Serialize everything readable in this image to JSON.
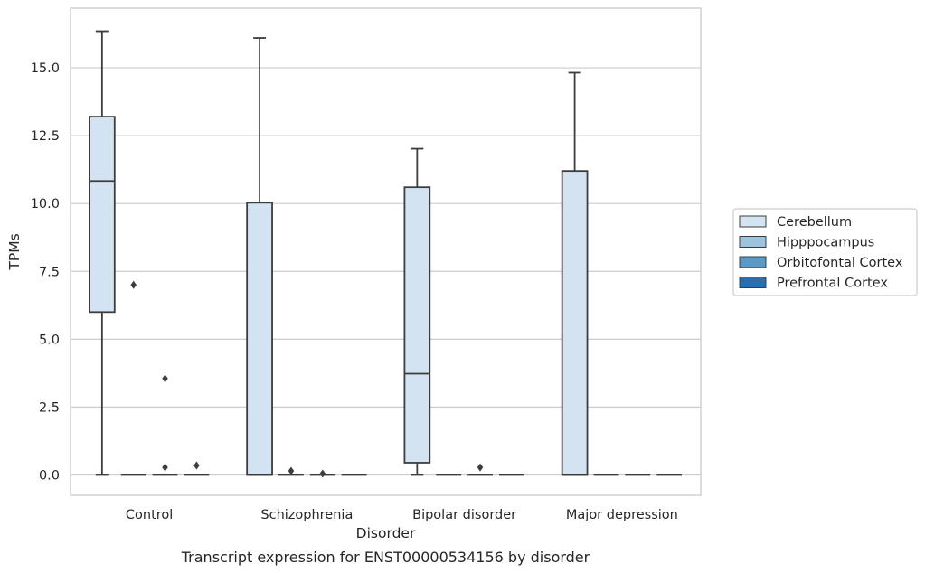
{
  "chart_data": {
    "type": "box",
    "title": "",
    "caption": "Transcript expression for ENST00000534156 by disorder",
    "xlabel": "Disorder",
    "ylabel": "TPMs",
    "ylim": [
      -0.75,
      17.2
    ],
    "yticks": [
      0.0,
      2.5,
      5.0,
      7.5,
      10.0,
      12.5,
      15.0
    ],
    "ytick_labels": [
      "0.0",
      "2.5",
      "5.0",
      "7.5",
      "10.0",
      "12.5",
      "15.0"
    ],
    "grid": "horizontal",
    "legend_position": "right",
    "categories": [
      "Control",
      "Schizophrenia",
      "Bipolar disorder",
      "Major depression"
    ],
    "series": [
      {
        "name": "Cerebellum",
        "color": "#d4e3f2",
        "boxes": [
          {
            "whisker_low": 0.0,
            "q1": 6.0,
            "median": 10.83,
            "q3": 13.2,
            "whisker_high": 16.35,
            "outliers": []
          },
          {
            "whisker_low": 0.0,
            "q1": 0.0,
            "median": 0.0,
            "q3": 10.03,
            "whisker_high": 16.1,
            "outliers": []
          },
          {
            "whisker_low": 0.0,
            "q1": 0.45,
            "median": 3.73,
            "q3": 10.6,
            "whisker_high": 12.02,
            "outliers": []
          },
          {
            "whisker_low": 0.0,
            "q1": 0.0,
            "median": 0.0,
            "q3": 11.2,
            "whisker_high": 14.82,
            "outliers": []
          }
        ]
      },
      {
        "name": "Hipppocampus",
        "color": "#9ec3dc",
        "boxes": [
          {
            "whisker_low": 0.0,
            "q1": 0.0,
            "median": 0.0,
            "q3": 0.0,
            "whisker_high": 0.0,
            "outliers": [
              7.0
            ]
          },
          {
            "whisker_low": 0.0,
            "q1": 0.0,
            "median": 0.0,
            "q3": 0.0,
            "whisker_high": 0.0,
            "outliers": [
              0.15
            ]
          },
          {
            "whisker_low": 0.0,
            "q1": 0.0,
            "median": 0.0,
            "q3": 0.0,
            "whisker_high": 0.0,
            "outliers": []
          },
          {
            "whisker_low": 0.0,
            "q1": 0.0,
            "median": 0.0,
            "q3": 0.0,
            "whisker_high": 0.0,
            "outliers": []
          }
        ]
      },
      {
        "name": "Orbitofontal Cortex",
        "color": "#5b9ac6",
        "boxes": [
          {
            "whisker_low": 0.0,
            "q1": 0.0,
            "median": 0.0,
            "q3": 0.0,
            "whisker_high": 0.0,
            "outliers": [
              3.55,
              0.28
            ]
          },
          {
            "whisker_low": 0.0,
            "q1": 0.0,
            "median": 0.0,
            "q3": 0.0,
            "whisker_high": 0.0,
            "outliers": [
              0.05
            ]
          },
          {
            "whisker_low": 0.0,
            "q1": 0.0,
            "median": 0.0,
            "q3": 0.0,
            "whisker_high": 0.0,
            "outliers": [
              0.28
            ]
          },
          {
            "whisker_low": 0.0,
            "q1": 0.0,
            "median": 0.0,
            "q3": 0.0,
            "whisker_high": 0.0,
            "outliers": []
          }
        ]
      },
      {
        "name": "Prefrontal Cortex",
        "color": "#2a6eaf",
        "boxes": [
          {
            "whisker_low": 0.0,
            "q1": 0.0,
            "median": 0.0,
            "q3": 0.0,
            "whisker_high": 0.0,
            "outliers": [
              0.35
            ]
          },
          {
            "whisker_low": 0.0,
            "q1": 0.0,
            "median": 0.0,
            "q3": 0.0,
            "whisker_high": 0.0,
            "outliers": []
          },
          {
            "whisker_low": 0.0,
            "q1": 0.0,
            "median": 0.0,
            "q3": 0.0,
            "whisker_high": 0.0,
            "outliers": []
          },
          {
            "whisker_low": 0.0,
            "q1": 0.0,
            "median": 0.0,
            "q3": 0.0,
            "whisker_high": 0.0,
            "outliers": []
          }
        ]
      }
    ],
    "colors": {
      "edge": "#3d3d3d",
      "grid": "#cccccc",
      "frame": "#cccccc",
      "legend_border": "#cccccc"
    }
  }
}
